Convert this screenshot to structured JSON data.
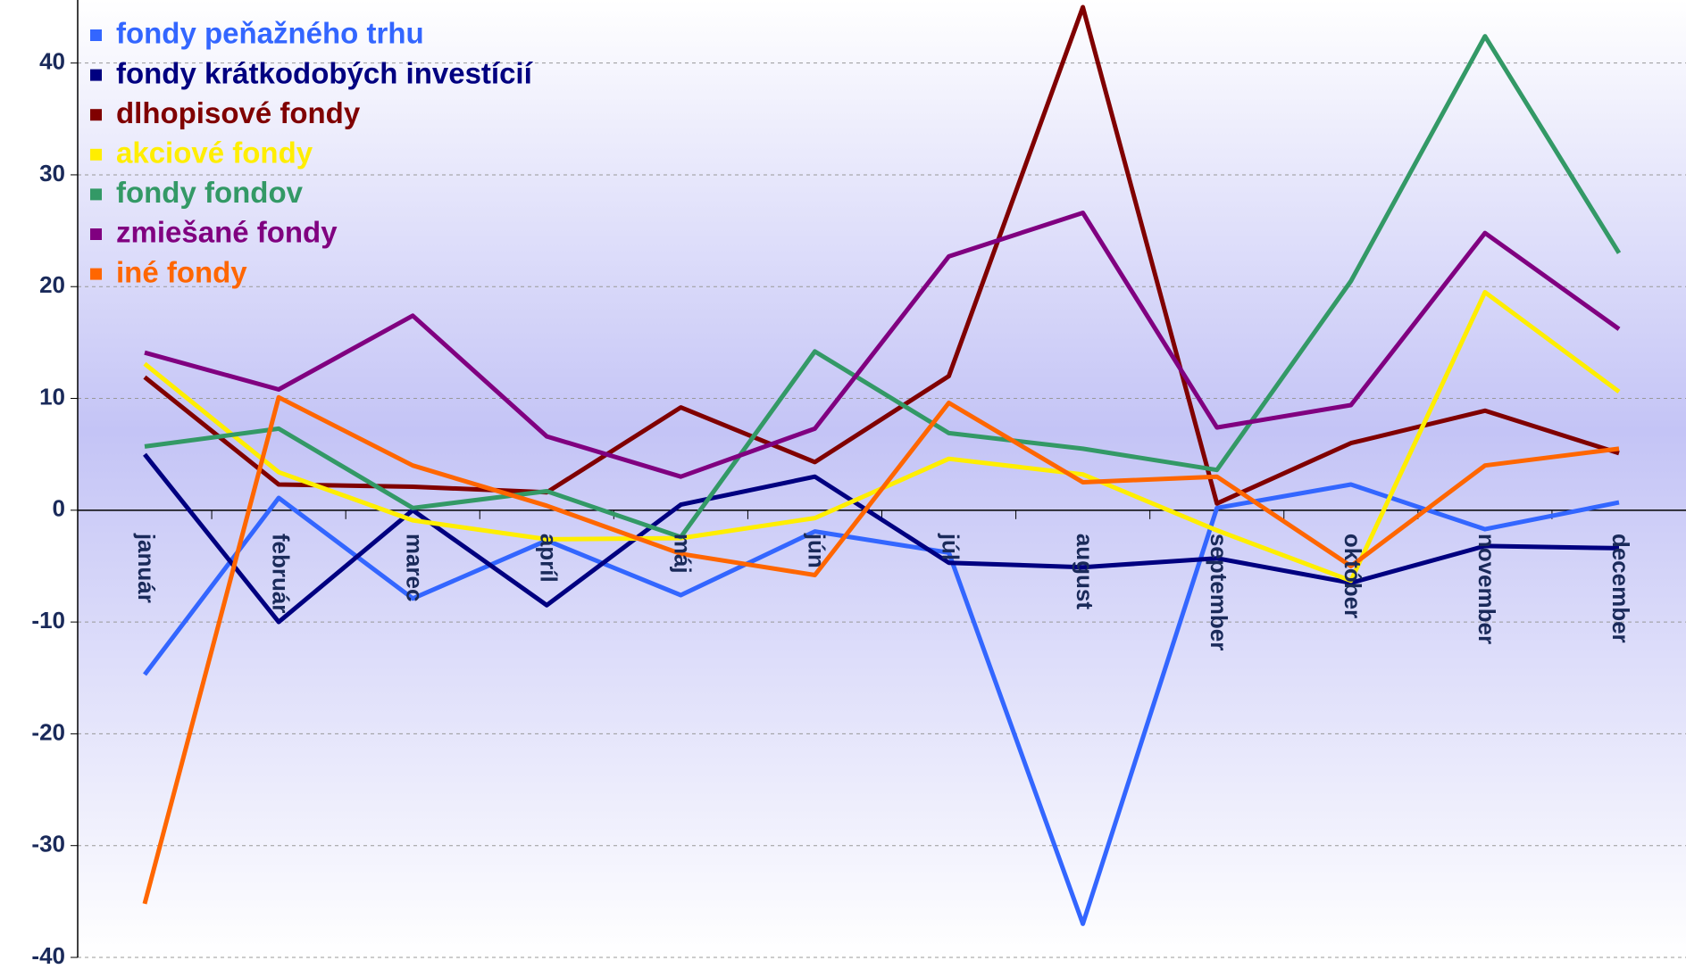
{
  "chart_data": {
    "type": "line",
    "categories": [
      "január",
      "február",
      "marec",
      "apríl",
      "máj",
      "jún",
      "júl",
      "august",
      "september",
      "október",
      "november",
      "december"
    ],
    "series": [
      {
        "name": "fondy peňažného trhu",
        "color": "#3366ff",
        "values": [
          -14.7,
          1.1,
          -7.9,
          -2.7,
          -7.6,
          -1.9,
          -3.8,
          -37,
          0.2,
          2.3,
          -1.7,
          0.7
        ]
      },
      {
        "name": "fondy krátkodobých investícií",
        "color": "#000080",
        "values": [
          5,
          -10,
          0,
          -8.5,
          0.5,
          3,
          -4.7,
          -5.1,
          -4.3,
          -6.5,
          -3.2,
          -3.4
        ]
      },
      {
        "name": "dlhopisové fondy",
        "color": "#800000",
        "values": [
          11.9,
          2.3,
          2.1,
          1.6,
          9.2,
          4.3,
          12,
          45,
          0.6,
          6,
          8.9,
          5.1
        ]
      },
      {
        "name": "akciové fondy",
        "color": "#ffee00",
        "values": [
          13.1,
          3.4,
          -0.9,
          -2.6,
          -2.5,
          -0.7,
          4.6,
          3.2,
          -1.8,
          -6.3,
          19.5,
          10.6
        ]
      },
      {
        "name": "fondy fondov",
        "color": "#339966",
        "values": [
          5.7,
          7.3,
          0.2,
          1.7,
          -2.4,
          14.2,
          6.9,
          5.5,
          3.6,
          20.5,
          42.4,
          23
        ]
      },
      {
        "name": "zmiešané fondy",
        "color": "#800080",
        "values": [
          14.1,
          10.8,
          17.4,
          6.6,
          3,
          7.3,
          22.7,
          26.6,
          7.4,
          9.4,
          24.8,
          16.2
        ]
      },
      {
        "name": "iné fondy",
        "color": "#ff6600",
        "values": [
          -35.2,
          10.1,
          4,
          0.4,
          -3.9,
          -5.8,
          9.6,
          2.5,
          3,
          -5,
          4,
          5.5
        ]
      }
    ],
    "ylim": [
      -40,
      45
    ],
    "yticks": [
      -40,
      -30,
      -20,
      -10,
      0,
      10,
      20,
      30,
      40
    ],
    "grid": true,
    "legend": "upper left"
  }
}
